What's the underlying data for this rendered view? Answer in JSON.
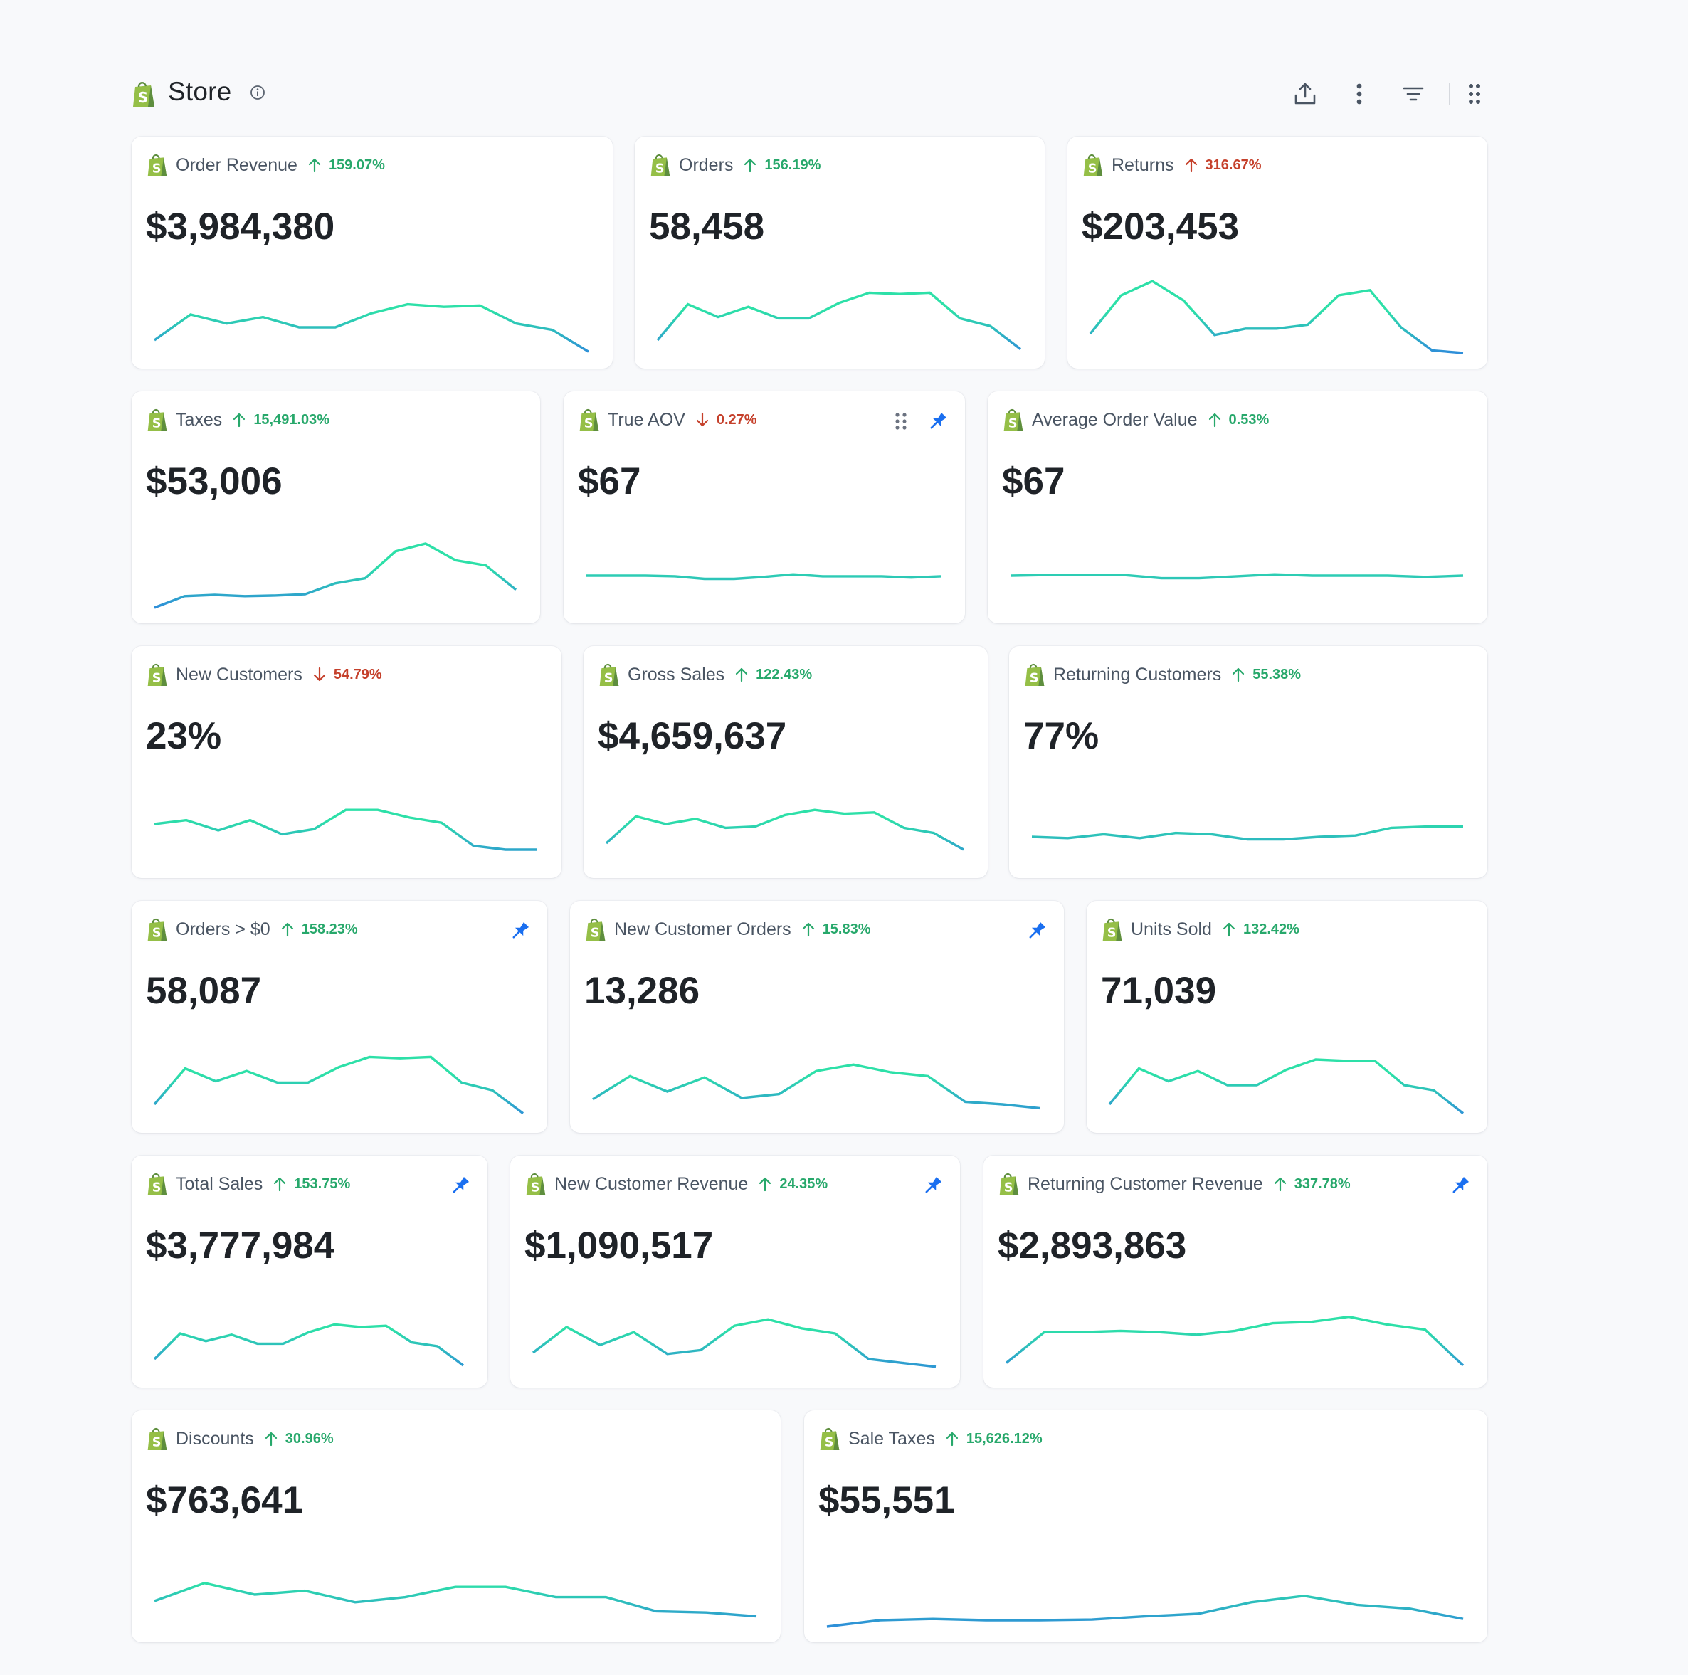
{
  "header": {
    "title": "Store",
    "toolbar": [
      "upload-icon",
      "more-vertical-icon",
      "filter-icon",
      "grid-icon"
    ]
  },
  "colors": {
    "up": "#27a86b",
    "down": "#c5402b",
    "line_start": "#2e86de",
    "line_end": "#2de0a8",
    "pin": "#1a6ff0",
    "logo": "#95bf47"
  },
  "cards": [
    {
      "label": "Order Revenue",
      "dir": "up",
      "pct_tone": "up",
      "change": "159.07%",
      "value": "$3,984,380",
      "pinned": false,
      "spark": [
        20,
        60,
        46,
        56,
        40,
        40,
        62,
        76,
        72,
        74,
        46,
        36,
        2
      ]
    },
    {
      "label": "Orders",
      "dir": "up",
      "pct_tone": "up",
      "change": "156.19%",
      "value": "58,458",
      "pinned": false,
      "spark": [
        20,
        76,
        56,
        72,
        54,
        54,
        78,
        94,
        92,
        94,
        54,
        42,
        6
      ]
    },
    {
      "label": "Returns",
      "dir": "up",
      "pct_tone": "red",
      "change": "316.67%",
      "value": "$203,453",
      "pinned": false,
      "spark": [
        30,
        90,
        112,
        82,
        28,
        38,
        38,
        44,
        90,
        98,
        40,
        4,
        0
      ]
    },
    {
      "label": "Taxes",
      "dir": "up",
      "pct_tone": "up",
      "change": "15,491.03%",
      "value": "$53,006",
      "pinned": false,
      "spark": [
        0,
        18,
        20,
        18,
        19,
        21,
        38,
        46,
        88,
        100,
        74,
        66,
        28
      ]
    },
    {
      "label": "True AOV",
      "dir": "down",
      "pct_tone": "red",
      "change": "0.27%",
      "value": "$67",
      "pinned": true,
      "drag": true,
      "spark": [
        50,
        50,
        50,
        49,
        45,
        45,
        48,
        52,
        49,
        49,
        49,
        47,
        49
      ]
    },
    {
      "label": "Average Order Value",
      "dir": "up",
      "pct_tone": "up",
      "change": "0.53%",
      "value": "$67",
      "pinned": false,
      "spark": [
        50,
        51,
        51,
        51,
        46,
        46,
        49,
        52,
        50,
        50,
        50,
        48,
        50
      ]
    },
    {
      "label": "New Customers",
      "dir": "down",
      "pct_tone": "red",
      "change": "54.79%",
      "value": "23%",
      "pinned": false,
      "spark": [
        60,
        66,
        50,
        66,
        44,
        52,
        82,
        82,
        70,
        62,
        26,
        20,
        20
      ]
    },
    {
      "label": "Gross Sales",
      "dir": "up",
      "pct_tone": "up",
      "change": "122.43%",
      "value": "$4,659,637",
      "pinned": false,
      "spark": [
        30,
        72,
        60,
        68,
        54,
        56,
        74,
        82,
        76,
        78,
        54,
        46,
        20
      ]
    },
    {
      "label": "Returning Customers",
      "dir": "up",
      "pct_tone": "up",
      "change": "55.38%",
      "value": "77%",
      "pinned": false,
      "spark": [
        40,
        38,
        44,
        38,
        46,
        44,
        36,
        36,
        40,
        42,
        54,
        56,
        56
      ]
    },
    {
      "label": "Orders > $0",
      "dir": "up",
      "pct_tone": "up",
      "change": "158.23%",
      "value": "58,087",
      "pinned": true,
      "spark": [
        20,
        76,
        56,
        72,
        54,
        54,
        78,
        94,
        92,
        94,
        54,
        42,
        6
      ]
    },
    {
      "label": "New Customer Orders",
      "dir": "up",
      "pct_tone": "up",
      "change": "15.83%",
      "value": "13,286",
      "pinned": true,
      "spark": [
        28,
        64,
        40,
        62,
        30,
        36,
        72,
        82,
        70,
        64,
        24,
        20,
        14
      ]
    },
    {
      "label": "Units Sold",
      "dir": "up",
      "pct_tone": "up",
      "change": "132.42%",
      "value": "71,039",
      "pinned": false,
      "spark": [
        20,
        76,
        56,
        72,
        50,
        50,
        74,
        90,
        88,
        88,
        50,
        42,
        6
      ]
    },
    {
      "label": "Total Sales",
      "dir": "up",
      "pct_tone": "up",
      "change": "153.75%",
      "value": "$3,777,984",
      "pinned": true,
      "spark": [
        20,
        60,
        48,
        58,
        44,
        44,
        62,
        74,
        70,
        72,
        46,
        40,
        10
      ]
    },
    {
      "label": "New Customer Revenue",
      "dir": "up",
      "pct_tone": "up",
      "change": "24.35%",
      "value": "$1,090,517",
      "pinned": true,
      "spark": [
        30,
        70,
        42,
        62,
        28,
        34,
        72,
        82,
        68,
        60,
        20,
        14,
        8
      ]
    },
    {
      "label": "Returning Customer Revenue",
      "dir": "up",
      "pct_tone": "up",
      "change": "337.78%",
      "value": "$2,893,863",
      "pinned": true,
      "spark": [
        14,
        62,
        62,
        64,
        62,
        58,
        64,
        76,
        78,
        86,
        74,
        66,
        10
      ]
    },
    {
      "label": "Discounts",
      "dir": "up",
      "pct_tone": "up",
      "change": "30.96%",
      "value": "$763,641",
      "pinned": false,
      "spark": [
        40,
        68,
        50,
        56,
        38,
        46,
        62,
        62,
        46,
        46,
        24,
        22,
        16
      ]
    },
    {
      "label": "Sale Taxes",
      "dir": "up",
      "pct_tone": "up",
      "change": "15,626.12%",
      "value": "$55,551",
      "pinned": false,
      "spark": [
        0,
        10,
        12,
        10,
        10,
        11,
        16,
        20,
        38,
        48,
        34,
        28,
        12
      ]
    }
  ]
}
